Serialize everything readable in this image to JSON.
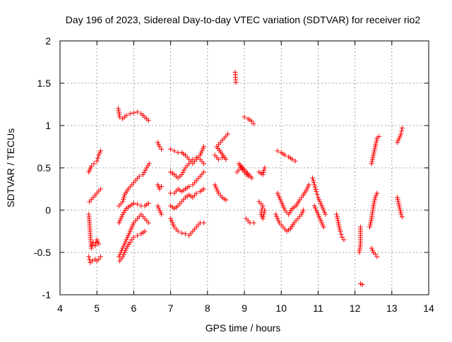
{
  "chart_data": {
    "type": "scatter",
    "title": "Day 196 of 2023, Sidereal Day-to-day VTEC variation (SDTVAR) for receiver rio2",
    "xlabel": "GPS time / hours",
    "ylabel": "SDTVAR / TECUs",
    "xlim": [
      4,
      14
    ],
    "ylim": [
      -1,
      2
    ],
    "xticks": [
      "4",
      "5",
      "6",
      "7",
      "8",
      "9",
      "10",
      "11",
      "12",
      "13",
      "14"
    ],
    "yticks": [
      "-1",
      "-0.5",
      "0",
      "0.5",
      "1",
      "1.5",
      "2"
    ],
    "grid": true,
    "marker": "+",
    "color": "#ff0000",
    "series_segments": [
      [
        [
          4.78,
          0.45
        ],
        [
          4.85,
          0.52
        ],
        [
          4.92,
          0.55
        ],
        [
          5.0,
          0.58
        ],
        [
          5.05,
          0.65
        ],
        [
          5.1,
          0.7
        ]
      ],
      [
        [
          4.8,
          0.1
        ],
        [
          4.9,
          0.15
        ],
        [
          5.0,
          0.2
        ],
        [
          5.1,
          0.25
        ]
      ],
      [
        [
          4.78,
          -0.05
        ],
        [
          4.8,
          -0.15
        ],
        [
          4.82,
          -0.3
        ],
        [
          4.85,
          -0.45
        ],
        [
          4.9,
          -0.38
        ],
        [
          4.95,
          -0.42
        ],
        [
          5.0,
          -0.35
        ],
        [
          5.05,
          -0.4
        ]
      ],
      [
        [
          4.78,
          -0.55
        ],
        [
          4.82,
          -0.62
        ],
        [
          4.88,
          -0.6
        ],
        [
          4.95,
          -0.58
        ],
        [
          5.0,
          -0.6
        ],
        [
          5.05,
          -0.58
        ],
        [
          5.1,
          -0.55
        ]
      ],
      [
        [
          5.58,
          1.2
        ],
        [
          5.62,
          1.1
        ],
        [
          5.7,
          1.08
        ],
        [
          5.8,
          1.12
        ],
        [
          5.9,
          1.14
        ],
        [
          6.0,
          1.15
        ],
        [
          6.1,
          1.16
        ],
        [
          6.2,
          1.14
        ],
        [
          6.3,
          1.1
        ],
        [
          6.4,
          1.06
        ]
      ],
      [
        [
          5.6,
          0.05
        ],
        [
          5.7,
          0.1
        ],
        [
          5.75,
          0.18
        ],
        [
          5.85,
          0.25
        ],
        [
          5.95,
          0.3
        ],
        [
          6.05,
          0.35
        ],
        [
          6.15,
          0.4
        ],
        [
          6.25,
          0.42
        ],
        [
          6.35,
          0.5
        ],
        [
          6.42,
          0.55
        ]
      ],
      [
        [
          5.6,
          -0.15
        ],
        [
          5.7,
          -0.05
        ],
        [
          5.8,
          0.02
        ],
        [
          5.9,
          0.05
        ],
        [
          6.0,
          0.08
        ],
        [
          6.1,
          0.07
        ],
        [
          6.2,
          0.05
        ],
        [
          6.3,
          0.05
        ],
        [
          6.4,
          0.08
        ]
      ],
      [
        [
          5.6,
          -0.55
        ],
        [
          5.7,
          -0.45
        ],
        [
          5.8,
          -0.35
        ],
        [
          5.9,
          -0.25
        ],
        [
          6.0,
          -0.15
        ],
        [
          6.1,
          -0.1
        ],
        [
          6.2,
          -0.05
        ],
        [
          6.3,
          -0.1
        ],
        [
          6.4,
          -0.15
        ]
      ],
      [
        [
          5.62,
          -0.6
        ],
        [
          5.7,
          -0.55
        ],
        [
          5.8,
          -0.45
        ],
        [
          5.9,
          -0.38
        ],
        [
          6.0,
          -0.32
        ],
        [
          6.1,
          -0.3
        ],
        [
          6.2,
          -0.28
        ],
        [
          6.3,
          -0.25
        ]
      ],
      [
        [
          6.65,
          0.8
        ],
        [
          6.7,
          0.75
        ],
        [
          6.75,
          0.72
        ]
      ],
      [
        [
          6.65,
          0.3
        ],
        [
          6.7,
          0.25
        ],
        [
          6.75,
          0.28
        ]
      ],
      [
        [
          6.65,
          0.05
        ],
        [
          6.7,
          0.0
        ],
        [
          6.75,
          -0.05
        ]
      ],
      [
        [
          7.0,
          0.72
        ],
        [
          7.1,
          0.7
        ],
        [
          7.2,
          0.68
        ],
        [
          7.3,
          0.68
        ],
        [
          7.4,
          0.65
        ],
        [
          7.5,
          0.6
        ],
        [
          7.6,
          0.55
        ],
        [
          7.7,
          0.6
        ],
        [
          7.8,
          0.65
        ],
        [
          7.9,
          0.75
        ]
      ],
      [
        [
          7.0,
          0.45
        ],
        [
          7.1,
          0.42
        ],
        [
          7.2,
          0.38
        ],
        [
          7.3,
          0.42
        ],
        [
          7.4,
          0.5
        ],
        [
          7.5,
          0.55
        ],
        [
          7.6,
          0.6
        ],
        [
          7.7,
          0.62
        ],
        [
          7.8,
          0.6
        ],
        [
          7.9,
          0.55
        ]
      ],
      [
        [
          7.0,
          0.2
        ],
        [
          7.1,
          0.2
        ],
        [
          7.2,
          0.25
        ],
        [
          7.3,
          0.22
        ],
        [
          7.4,
          0.25
        ],
        [
          7.5,
          0.28
        ],
        [
          7.6,
          0.3
        ],
        [
          7.7,
          0.35
        ],
        [
          7.8,
          0.4
        ],
        [
          7.9,
          0.45
        ]
      ],
      [
        [
          7.0,
          0.05
        ],
        [
          7.1,
          0.02
        ],
        [
          7.2,
          0.05
        ],
        [
          7.3,
          0.1
        ],
        [
          7.4,
          0.15
        ],
        [
          7.5,
          0.18
        ],
        [
          7.6,
          0.15
        ],
        [
          7.7,
          0.2
        ],
        [
          7.8,
          0.22
        ],
        [
          7.9,
          0.25
        ]
      ],
      [
        [
          7.0,
          -0.1
        ],
        [
          7.1,
          -0.2
        ],
        [
          7.2,
          -0.25
        ],
        [
          7.3,
          -0.27
        ],
        [
          7.4,
          -0.28
        ],
        [
          7.5,
          -0.3
        ],
        [
          7.6,
          -0.25
        ],
        [
          7.7,
          -0.2
        ],
        [
          7.8,
          -0.15
        ],
        [
          7.9,
          -0.15
        ]
      ],
      [
        [
          8.2,
          0.65
        ],
        [
          8.3,
          0.6
        ],
        [
          8.4,
          0.62
        ],
        [
          8.5,
          0.6
        ],
        [
          8.25,
          0.75
        ],
        [
          8.35,
          0.8
        ],
        [
          8.45,
          0.85
        ],
        [
          8.55,
          0.9
        ]
      ],
      [
        [
          8.2,
          0.3
        ],
        [
          8.3,
          0.2
        ],
        [
          8.4,
          0.15
        ],
        [
          8.5,
          0.12
        ]
      ],
      [
        [
          8.75,
          1.63
        ],
        [
          8.77,
          1.51
        ]
      ],
      [
        [
          8.8,
          0.45
        ],
        [
          8.9,
          0.5
        ],
        [
          9.0,
          0.45
        ],
        [
          9.1,
          0.4
        ],
        [
          9.2,
          0.38
        ],
        [
          8.85,
          0.55
        ],
        [
          8.95,
          0.48
        ]
      ],
      [
        [
          9.0,
          1.1
        ],
        [
          9.1,
          1.08
        ],
        [
          9.2,
          1.05
        ],
        [
          9.25,
          1.02
        ]
      ],
      [
        [
          9.05,
          -0.1
        ],
        [
          9.15,
          -0.15
        ],
        [
          9.25,
          -0.15
        ]
      ],
      [
        [
          9.4,
          0.45
        ],
        [
          9.5,
          0.42
        ],
        [
          9.55,
          0.5
        ]
      ],
      [
        [
          9.4,
          0.1
        ],
        [
          9.5,
          0.05
        ],
        [
          9.45,
          -0.05
        ],
        [
          9.5,
          -0.1
        ],
        [
          9.55,
          0.0
        ]
      ],
      [
        [
          9.9,
          0.7
        ],
        [
          10.0,
          0.68
        ],
        [
          10.1,
          0.65
        ],
        [
          10.2,
          0.63
        ],
        [
          10.3,
          0.6
        ],
        [
          10.38,
          0.58
        ]
      ],
      [
        [
          9.9,
          0.2
        ],
        [
          10.0,
          0.1
        ],
        [
          10.1,
          0.0
        ],
        [
          10.2,
          -0.05
        ],
        [
          10.3,
          0.02
        ],
        [
          10.4,
          0.05
        ],
        [
          10.5,
          0.12
        ],
        [
          10.6,
          0.18
        ],
        [
          10.7,
          0.25
        ],
        [
          10.75,
          0.3
        ]
      ],
      [
        [
          9.85,
          -0.05
        ],
        [
          9.95,
          -0.15
        ],
        [
          10.05,
          -0.2
        ],
        [
          10.15,
          -0.25
        ],
        [
          10.25,
          -0.22
        ],
        [
          10.35,
          -0.15
        ],
        [
          10.45,
          -0.1
        ],
        [
          10.55,
          -0.05
        ],
        [
          10.6,
          0.0
        ]
      ],
      [
        [
          10.85,
          0.38
        ],
        [
          10.9,
          0.3
        ],
        [
          10.95,
          0.22
        ],
        [
          11.0,
          0.15
        ],
        [
          11.05,
          0.1
        ],
        [
          11.1,
          0.05
        ],
        [
          11.15,
          0.0
        ],
        [
          11.2,
          -0.05
        ]
      ],
      [
        [
          10.9,
          0.05
        ],
        [
          10.95,
          0.0
        ],
        [
          11.0,
          -0.05
        ],
        [
          11.05,
          -0.1
        ],
        [
          11.1,
          -0.15
        ],
        [
          11.15,
          -0.2
        ]
      ],
      [
        [
          11.5,
          -0.05
        ],
        [
          11.55,
          -0.15
        ],
        [
          11.6,
          -0.25
        ],
        [
          11.65,
          -0.32
        ],
        [
          11.7,
          -0.35
        ]
      ],
      [
        [
          12.15,
          -0.2
        ],
        [
          12.15,
          -0.4
        ],
        [
          12.12,
          -0.5
        ]
      ],
      [
        [
          12.15,
          -0.87
        ],
        [
          12.2,
          -0.88
        ]
      ],
      [
        [
          12.4,
          -0.2
        ],
        [
          12.45,
          -0.1
        ],
        [
          12.5,
          0.05
        ],
        [
          12.55,
          0.15
        ],
        [
          12.6,
          0.2
        ]
      ],
      [
        [
          12.45,
          -0.45
        ],
        [
          12.5,
          -0.5
        ],
        [
          12.55,
          -0.52
        ],
        [
          12.6,
          -0.55
        ]
      ],
      [
        [
          12.45,
          0.55
        ],
        [
          12.5,
          0.65
        ],
        [
          12.55,
          0.75
        ],
        [
          12.6,
          0.85
        ],
        [
          12.65,
          0.87
        ]
      ],
      [
        [
          13.15,
          0.8
        ],
        [
          13.2,
          0.85
        ],
        [
          13.25,
          0.9
        ],
        [
          13.28,
          0.97
        ]
      ],
      [
        [
          13.15,
          0.15
        ],
        [
          13.2,
          0.05
        ],
        [
          13.25,
          -0.05
        ],
        [
          13.28,
          -0.08
        ]
      ]
    ]
  }
}
